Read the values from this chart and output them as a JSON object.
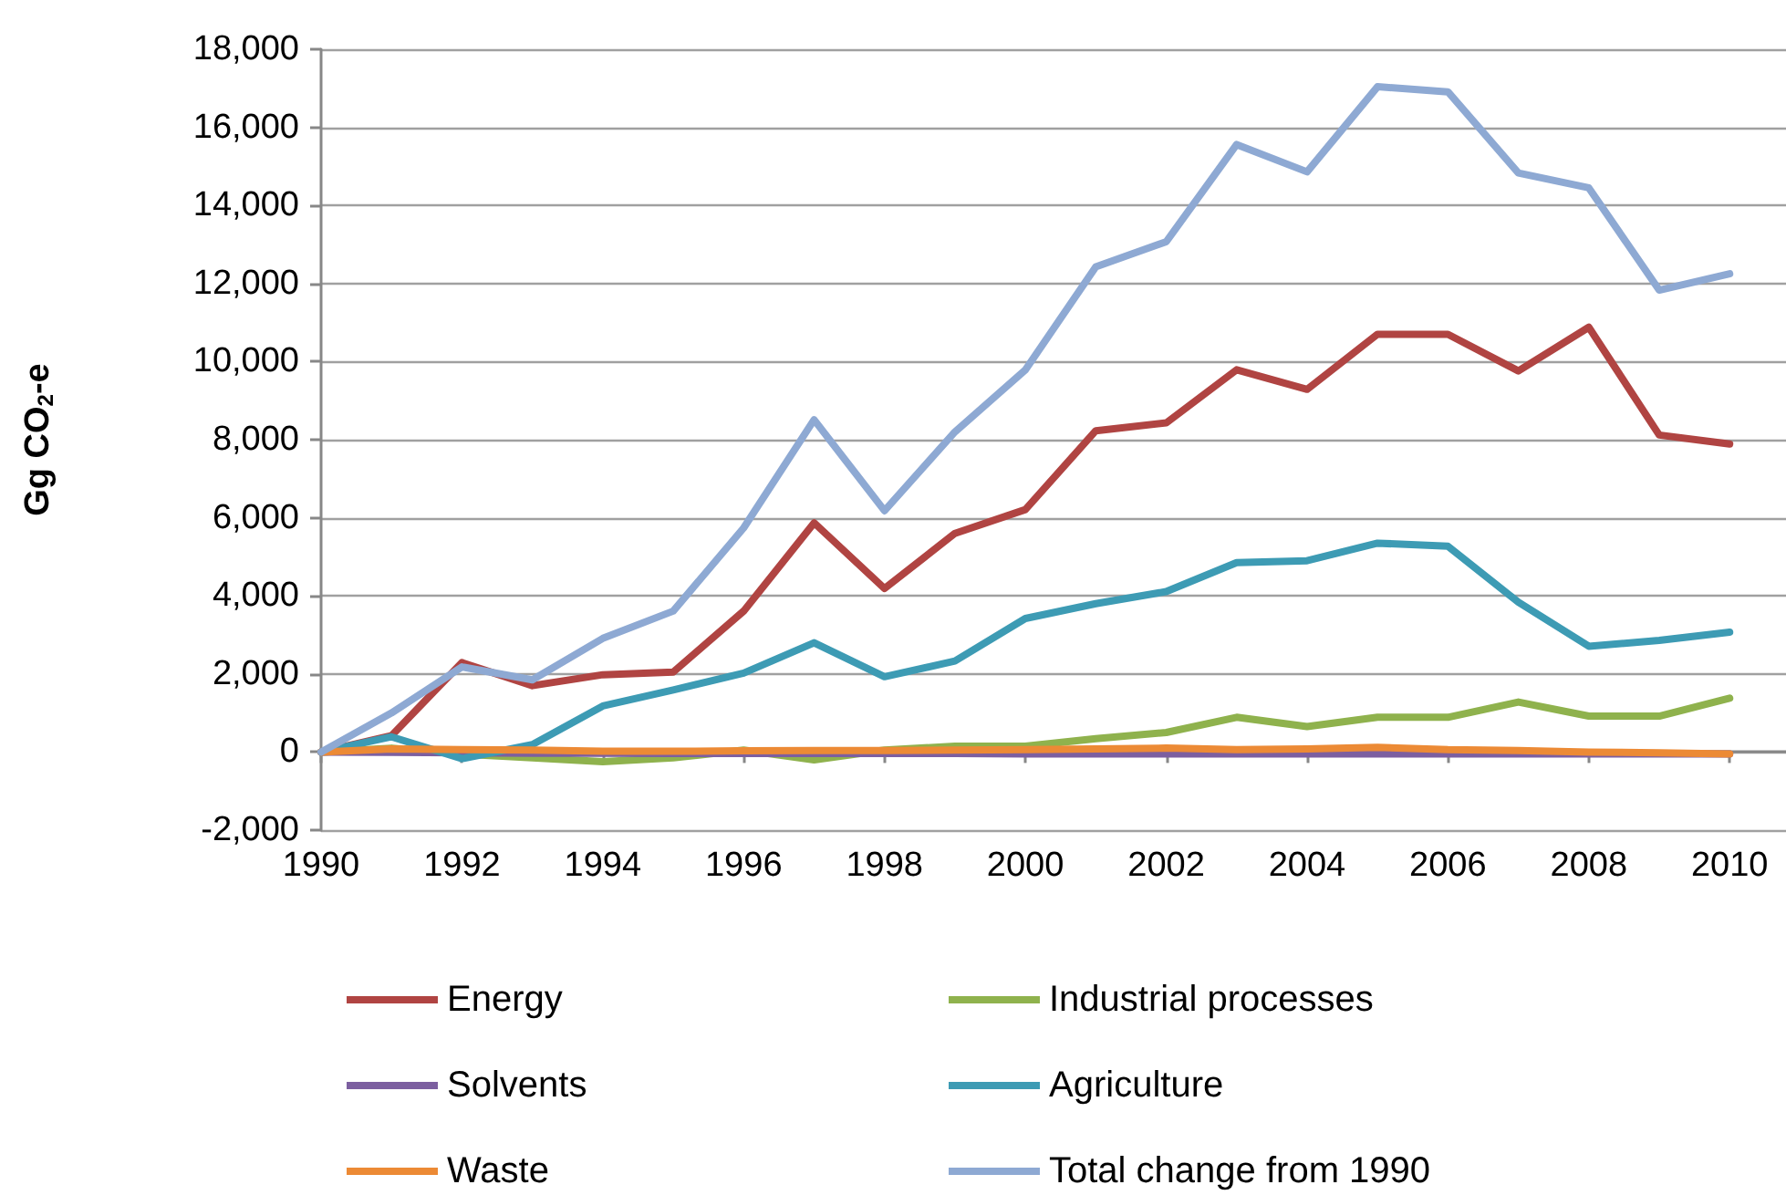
{
  "chart_data": {
    "type": "line",
    "ylabel": "Gg CO$_{2}$-e",
    "x": [
      1990,
      1991,
      1992,
      1993,
      1994,
      1995,
      1996,
      1997,
      1998,
      1999,
      2000,
      2001,
      2002,
      2003,
      2004,
      2005,
      2006,
      2007,
      2008,
      2009,
      2010
    ],
    "series": [
      {
        "name": "Energy",
        "color": "#b04442",
        "values": [
          0,
          420,
          2290,
          1700,
          1980,
          2050,
          3610,
          5870,
          4190,
          5600,
          6210,
          8230,
          8430,
          9790,
          9290,
          10700,
          10700,
          9760,
          10880,
          8120,
          7890
        ]
      },
      {
        "name": "Industrial processes",
        "color": "#8fb24d",
        "values": [
          0,
          100,
          -50,
          -150,
          -250,
          -150,
          50,
          -200,
          50,
          150,
          150,
          340,
          500,
          890,
          650,
          890,
          890,
          1280,
          920,
          920,
          1380
        ]
      },
      {
        "name": "Solvents",
        "color": "#7c5fa0",
        "values": [
          0,
          -10,
          -20,
          -30,
          -30,
          -40,
          -40,
          -40,
          -40,
          -40,
          -50,
          -50,
          -50,
          -50,
          -50,
          -50,
          -50,
          -50,
          -50,
          -50,
          -50
        ]
      },
      {
        "name": "Agriculture",
        "color": "#3d9bb4",
        "values": [
          0,
          390,
          -170,
          190,
          1180,
          1590,
          2020,
          2800,
          1930,
          2330,
          3420,
          3800,
          4110,
          4850,
          4900,
          5350,
          5270,
          3840,
          2710,
          2860,
          3070
        ]
      },
      {
        "name": "Waste",
        "color": "#ec8a35",
        "values": [
          0,
          80,
          60,
          50,
          20,
          20,
          30,
          40,
          40,
          50,
          60,
          80,
          100,
          60,
          80,
          120,
          60,
          40,
          0,
          -20,
          -50
        ]
      },
      {
        "name": "Total change from 1990",
        "color": "#8ea9d3",
        "values": [
          0,
          1000,
          2180,
          1850,
          2910,
          3610,
          5740,
          8510,
          6180,
          8200,
          9790,
          12430,
          13070,
          15560,
          14860,
          17040,
          16910,
          14830,
          14450,
          11830,
          12250
        ]
      }
    ],
    "xlim": [
      1990,
      2010.8
    ],
    "xticks": [
      1990,
      1992,
      1994,
      1996,
      1998,
      2000,
      2002,
      2004,
      2006,
      2008,
      2010
    ],
    "ylim": [
      -2000,
      18000
    ],
    "yticks": [
      {
        "value": -2000,
        "label": "-2,000"
      },
      {
        "value": 0,
        "label": "0"
      },
      {
        "value": 2000,
        "label": "2,000"
      },
      {
        "value": 4000,
        "label": "4,000"
      },
      {
        "value": 6000,
        "label": "6,000"
      },
      {
        "value": 8000,
        "label": "8,000"
      },
      {
        "value": 10000,
        "label": "10,000"
      },
      {
        "value": 12000,
        "label": "12,000"
      },
      {
        "value": 14000,
        "label": "14,000"
      },
      {
        "value": 16000,
        "label": "16,000"
      },
      {
        "value": 18000,
        "label": "18,000"
      }
    ],
    "grid": "y",
    "legend": "bottom",
    "marker": "none",
    "line_style": "solid"
  }
}
